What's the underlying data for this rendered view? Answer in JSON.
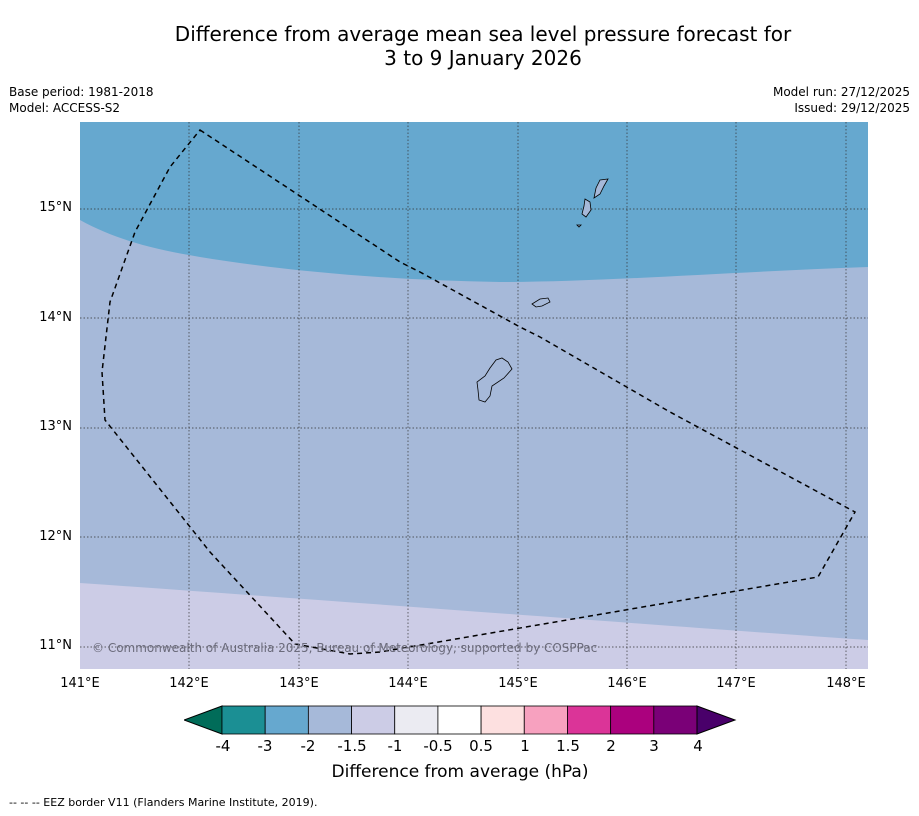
{
  "title_line1": "Difference from average mean sea level pressure forecast for",
  "title_line2": "3 to 9 January 2026",
  "base_period": "Base period: 1981-2018",
  "model": "Model: ACCESS-S2",
  "model_run": "Model run: 27/12/2025",
  "issued": "Issued: 29/12/2025",
  "copyright": "© Commonwealth of Australia 2025, Bureau of Meteorology, supported by COSPPac",
  "lat_labels": [
    "15°N",
    "14°N",
    "13°N",
    "12°N",
    "11°N"
  ],
  "lon_labels": [
    "141°E",
    "142°E",
    "143°E",
    "144°E",
    "145°E",
    "146°E",
    "147°E",
    "148°E"
  ],
  "colorbar": {
    "label": "Difference from average (hPa)",
    "ticks": [
      "-4",
      "-3",
      "-2",
      "-1.5",
      "-1",
      "-0.5",
      "0.5",
      "1",
      "1.5",
      "2",
      "3",
      "4"
    ],
    "colors": [
      "#1b8f94",
      "#66a8cf",
      "#a6b9d9",
      "#cccce6",
      "#ebebf2",
      "#ffffff",
      "#fde0e0",
      "#f7a1bf",
      "#db3498",
      "#ab017e",
      "#7a0077"
    ],
    "under_color": "#016c59",
    "over_color": "#49006a"
  },
  "regions": {
    "band_minus3_to_minus2": "#66a8cf",
    "band_minus2_to_minus1_5": "#a6b9d9",
    "band_minus1_5_to_minus1": "#cccce6"
  },
  "legend_note": "--  --  -- EEZ border V11 (Flanders Marine Institute, 2019)."
}
